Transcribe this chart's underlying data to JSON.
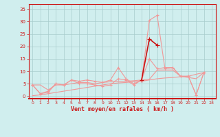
{
  "x_labels": [
    0,
    1,
    2,
    3,
    4,
    5,
    6,
    7,
    8,
    9,
    10,
    11,
    12,
    13,
    14,
    15,
    16,
    17,
    18,
    19,
    20,
    21,
    22,
    23
  ],
  "series": [
    {
      "x": [
        0,
        1,
        2,
        3,
        4,
        5,
        6,
        7,
        8,
        9,
        10,
        11,
        12,
        13,
        14,
        15,
        16,
        17,
        18,
        19,
        20,
        21,
        22
      ],
      "y": [
        4.5,
        1,
        2,
        5,
        4.5,
        6.5,
        6,
        6.5,
        6,
        5.5,
        6.5,
        11.5,
        7,
        5,
        6.5,
        30.5,
        32.5,
        11,
        11.5,
        8,
        8,
        0.5,
        9.5
      ],
      "color": "#f09898",
      "lw": 0.8,
      "marker": "+",
      "ms": 2.5,
      "zorder": 2
    },
    {
      "x": [
        0,
        1,
        2,
        3,
        4,
        5,
        6,
        7,
        8,
        9,
        10,
        11,
        12,
        13,
        14,
        15,
        16,
        17,
        18,
        19,
        20,
        21,
        22
      ],
      "y": [
        4.5,
        1,
        1.5,
        5,
        4.5,
        6.5,
        5,
        5,
        4.5,
        4,
        4.5,
        7,
        6.5,
        4.5,
        6.5,
        15,
        11,
        11.5,
        11.5,
        8,
        8,
        0.5,
        9.5
      ],
      "color": "#f09898",
      "lw": 0.8,
      "marker": "+",
      "ms": 2.5,
      "zorder": 2
    },
    {
      "x": [
        0,
        1,
        2,
        3,
        4,
        5,
        6,
        7,
        8,
        9,
        10,
        11,
        12,
        13,
        14,
        15,
        16,
        17,
        18,
        19,
        20,
        21,
        22
      ],
      "y": [
        0.2,
        0.5,
        1,
        1.5,
        2,
        2.5,
        3,
        3.5,
        4,
        4.5,
        5,
        5.3,
        5.5,
        5.8,
        6,
        6.5,
        7,
        7.3,
        7.5,
        7.8,
        8,
        8.8,
        9.5
      ],
      "color": "#f09898",
      "lw": 0.8,
      "marker": null,
      "ms": 0,
      "zorder": 2
    },
    {
      "x": [
        0,
        1,
        2,
        3,
        4,
        5,
        6,
        7,
        8,
        9,
        10,
        11,
        12,
        13,
        14,
        15,
        16,
        17,
        18,
        19,
        20,
        21,
        22
      ],
      "y": [
        4.5,
        4.5,
        2.5,
        4.5,
        4.5,
        5,
        5.5,
        5.5,
        5,
        5.5,
        5.8,
        6,
        6,
        6.2,
        6.5,
        6.8,
        10.5,
        10.5,
        10.5,
        8,
        7.5,
        7,
        9.5
      ],
      "color": "#f09898",
      "lw": 0.8,
      "marker": null,
      "ms": 0,
      "zorder": 2
    },
    {
      "x": [
        14,
        15,
        16
      ],
      "y": [
        6.5,
        23,
        20.5
      ],
      "color": "#cc1010",
      "lw": 1.2,
      "marker": "+",
      "ms": 4,
      "zorder": 5
    }
  ],
  "bg_color": "#d0eeee",
  "grid_color": "#a8cccc",
  "axis_color": "#cc1818",
  "xlabel": "Vent moyen/en rafales ( km/h )",
  "yticks": [
    0,
    5,
    10,
    15,
    20,
    25,
    30,
    35
  ],
  "ylim": [
    -1,
    37
  ],
  "xlim": [
    -0.5,
    23.5
  ]
}
